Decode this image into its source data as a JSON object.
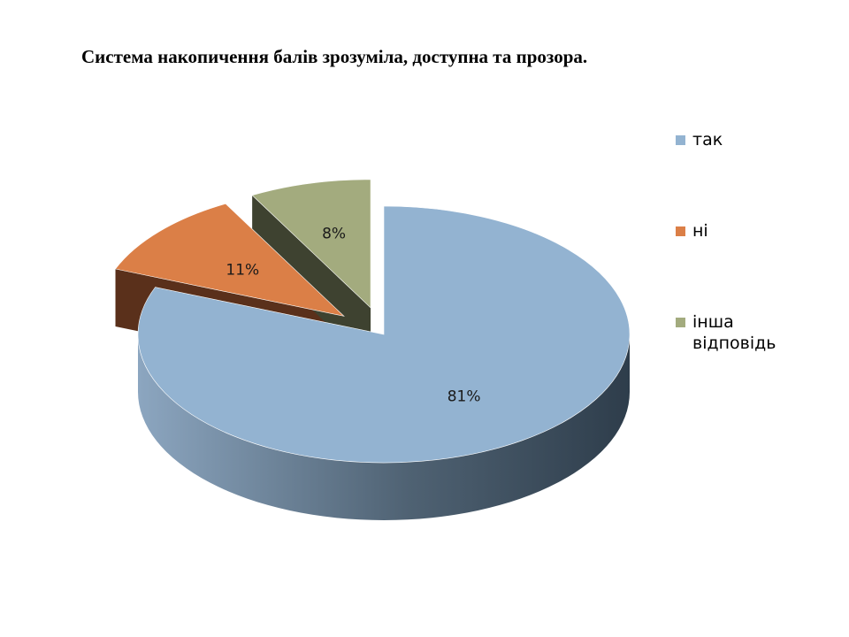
{
  "chart_data": {
    "type": "pie",
    "title": "Система накопичення балів зрозуміла, доступна та прозора.",
    "categories": [
      "так",
      "ні",
      "інша відповідь"
    ],
    "values": [
      81,
      11,
      8
    ],
    "value_labels": [
      "81%",
      "11%",
      "8%"
    ],
    "colors": [
      "#93B3D1",
      "#DB7F47",
      "#A3AB7E"
    ],
    "exploded": [
      false,
      true,
      true
    ],
    "style": "3d",
    "legend_position": "right"
  }
}
